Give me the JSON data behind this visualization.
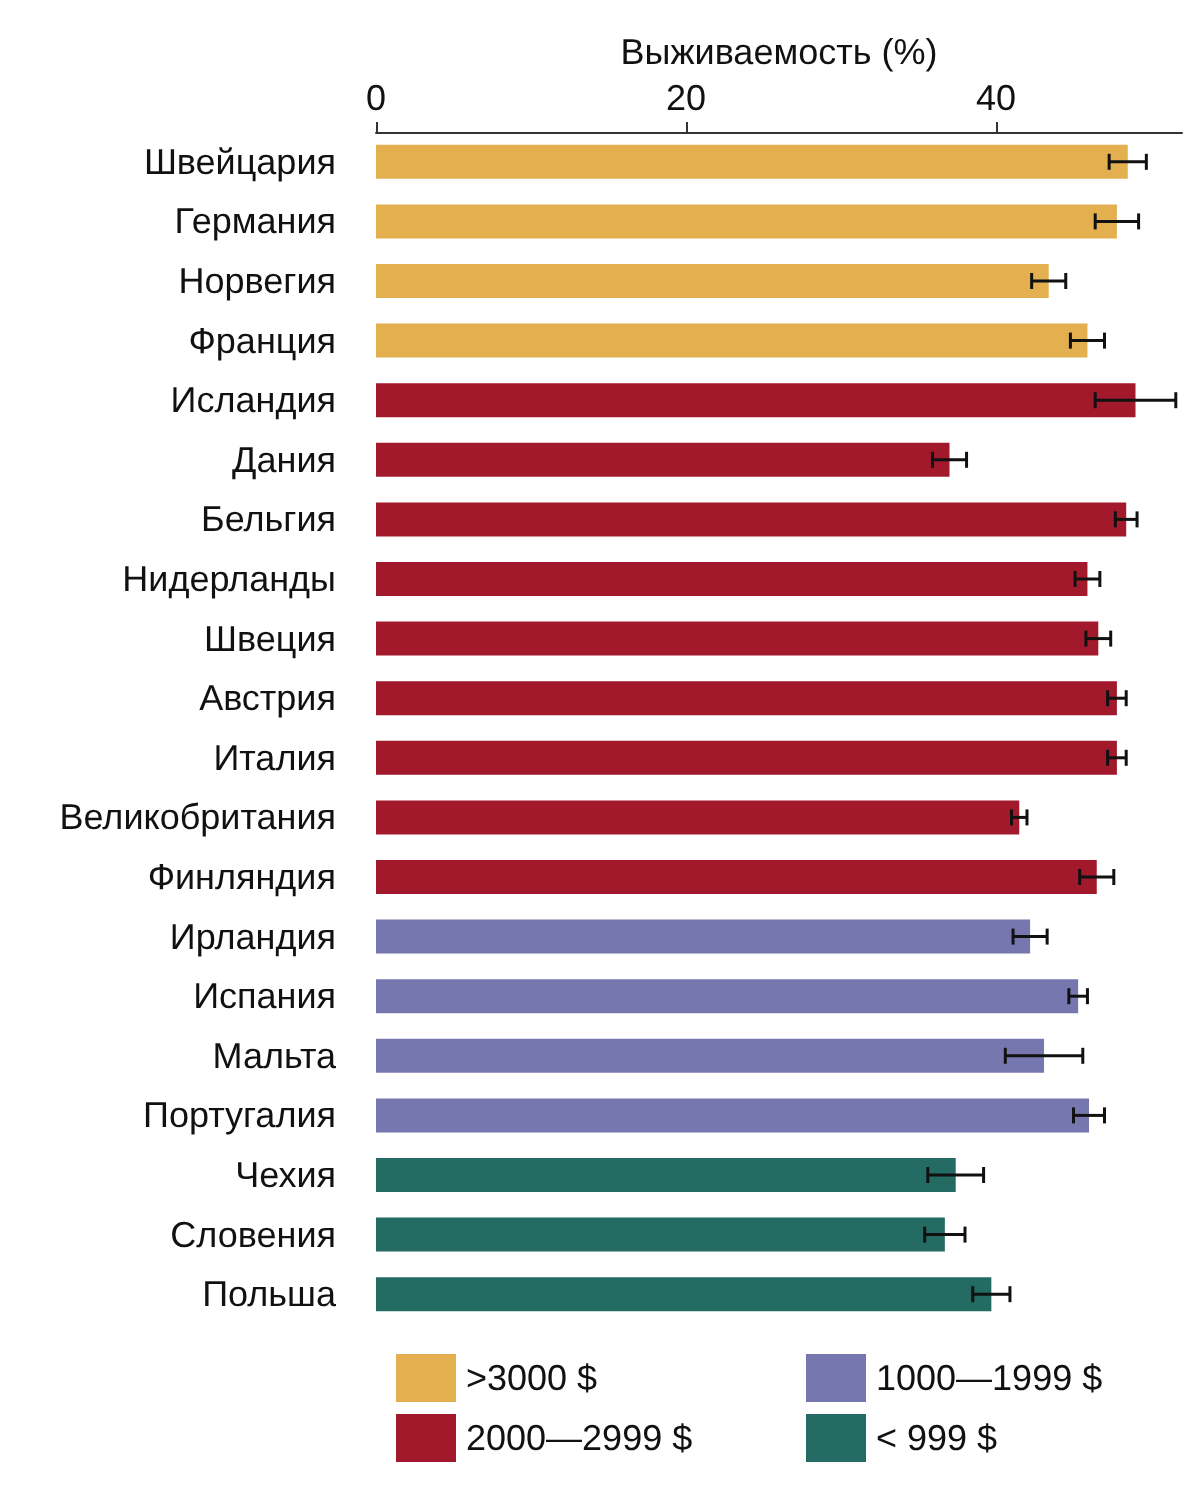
{
  "chart_data": {
    "type": "bar",
    "orientation": "horizontal",
    "stacked": true,
    "xlabel": "Выживаемость (%)",
    "categories": [
      "Швейцария",
      "Германия",
      "Норвегия",
      "Франция",
      "Исландия",
      "Дания",
      "Бельгия",
      "Нидерланды",
      "Швеция",
      "Австрия",
      "Италия",
      "Великобритания",
      "Финляндия",
      "Ирландия",
      "Испания",
      "Мальта",
      "Португалия",
      "Чехия",
      "Словения",
      "Польша"
    ],
    "series": [
      {
        "name": ">3000 $",
        "color": "#e3af4f",
        "values": [
          48.5,
          47.8,
          43.4,
          45.9,
          null,
          null,
          null,
          null,
          null,
          null,
          null,
          null,
          null,
          null,
          null,
          null,
          null,
          null,
          null,
          null
        ],
        "errors": [
          1.2,
          1.4,
          1.1,
          1.1,
          null,
          null,
          null,
          null,
          null,
          null,
          null,
          null,
          null,
          null,
          null,
          null,
          null,
          null,
          null,
          null
        ]
      },
      {
        "name": "2000—2999 $",
        "color": "#a1192b",
        "values": [
          null,
          null,
          null,
          null,
          49.0,
          37.0,
          48.4,
          45.9,
          46.6,
          47.8,
          47.8,
          41.5,
          46.5,
          null,
          null,
          null,
          null,
          null,
          null,
          null
        ],
        "errors": [
          null,
          null,
          null,
          null,
          2.6,
          1.1,
          0.7,
          0.8,
          0.8,
          0.6,
          0.6,
          0.5,
          1.1,
          null,
          null,
          null,
          null,
          null,
          null,
          null
        ]
      },
      {
        "name": "1000—1999 $",
        "color": "#7777b0",
        "values": [
          null,
          null,
          null,
          null,
          null,
          null,
          null,
          null,
          null,
          null,
          null,
          null,
          null,
          42.2,
          45.3,
          43.1,
          46.0,
          null,
          null,
          null
        ],
        "errors": [
          null,
          null,
          null,
          null,
          null,
          null,
          null,
          null,
          null,
          null,
          null,
          null,
          null,
          1.1,
          0.6,
          2.5,
          1.0,
          null,
          null,
          null
        ]
      },
      {
        "name": "< 999 $",
        "color": "#236b63",
        "values": [
          null,
          null,
          null,
          null,
          null,
          null,
          null,
          null,
          null,
          null,
          null,
          null,
          null,
          null,
          null,
          null,
          null,
          37.4,
          36.7,
          39.7
        ],
        "errors": [
          null,
          null,
          null,
          null,
          null,
          null,
          null,
          null,
          null,
          null,
          null,
          null,
          null,
          null,
          null,
          null,
          null,
          1.8,
          1.3,
          1.2
        ]
      }
    ],
    "xlim": [
      0,
      52
    ],
    "xticks": [
      0,
      20,
      40
    ],
    "grid": false,
    "legend": "bottom"
  }
}
